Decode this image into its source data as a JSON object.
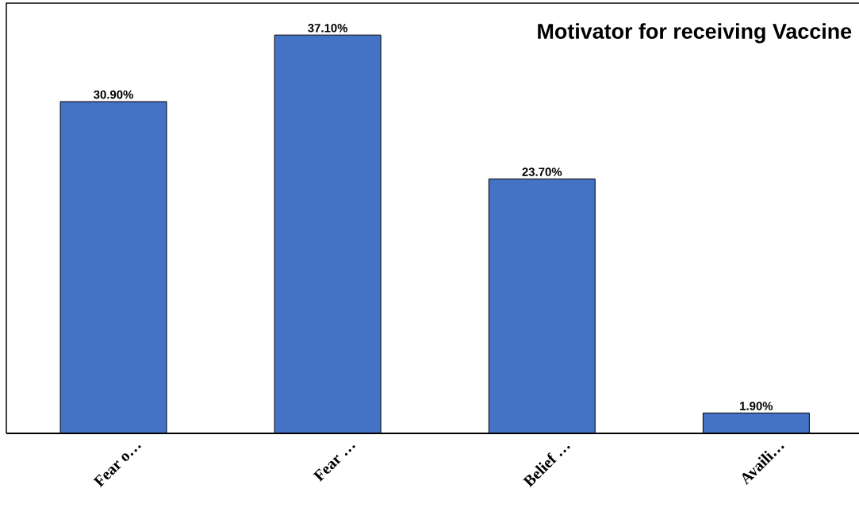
{
  "chart_data": {
    "type": "bar",
    "title": "Motivator for receiving Vaccine",
    "categories": [
      "Fear o…",
      "Fear …",
      "Belief …",
      "Availi…"
    ],
    "values": [
      30.9,
      37.1,
      23.7,
      1.9
    ],
    "value_labels": [
      "30.90%",
      "37.10%",
      "23.70%",
      "1.90%"
    ],
    "color": "#4472c4"
  }
}
